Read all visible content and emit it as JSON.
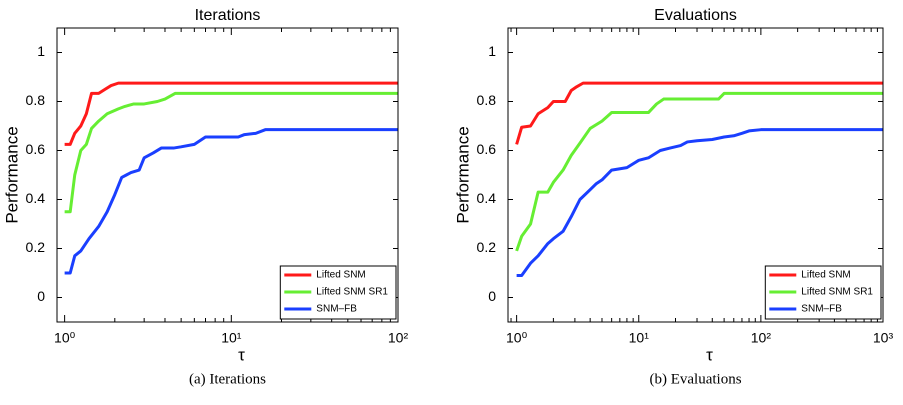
{
  "chart_data": [
    {
      "type": "line",
      "title": "Iterations",
      "caption": "(a) Iterations",
      "xlabel": "τ",
      "ylabel": "Performance",
      "xscale": "log",
      "xlim": [
        0.9,
        100
      ],
      "ylim": [
        -0.1,
        1.1
      ],
      "xticks": [
        {
          "value": 1,
          "label": "10⁰"
        },
        {
          "value": 10,
          "label": "10¹"
        },
        {
          "value": 100,
          "label": "10²"
        }
      ],
      "yticks": [
        0,
        0.2,
        0.4,
        0.6,
        0.8,
        1
      ],
      "grid": false,
      "legend": "lower right",
      "series": [
        {
          "name": "Lifted SNM",
          "color": "#ff1a1a",
          "x": [
            1,
            1.08,
            1.15,
            1.25,
            1.35,
            1.45,
            1.6,
            1.75,
            1.9,
            2.1,
            100
          ],
          "values": [
            0.625,
            0.625,
            0.67,
            0.7,
            0.75,
            0.833,
            0.833,
            0.85,
            0.865,
            0.875,
            0.875
          ]
        },
        {
          "name": "Lifted SNM SR1",
          "color": "#66ee33",
          "x": [
            1,
            1.08,
            1.15,
            1.25,
            1.35,
            1.45,
            1.6,
            1.8,
            2.1,
            2.3,
            2.6,
            3,
            3.6,
            4,
            4.6,
            100
          ],
          "values": [
            0.35,
            0.35,
            0.5,
            0.6,
            0.625,
            0.69,
            0.72,
            0.75,
            0.77,
            0.78,
            0.79,
            0.79,
            0.8,
            0.81,
            0.833,
            0.833
          ]
        },
        {
          "name": "SNM–FB",
          "color": "#1a3fff",
          "x": [
            1,
            1.08,
            1.15,
            1.25,
            1.4,
            1.6,
            1.8,
            2,
            2.2,
            2.5,
            2.8,
            3,
            3.4,
            3.8,
            4.5,
            5,
            6,
            7,
            11,
            12,
            14,
            16,
            100
          ],
          "values": [
            0.1,
            0.1,
            0.17,
            0.19,
            0.24,
            0.29,
            0.35,
            0.42,
            0.49,
            0.51,
            0.52,
            0.57,
            0.59,
            0.61,
            0.61,
            0.615,
            0.625,
            0.655,
            0.655,
            0.665,
            0.67,
            0.685,
            0.685
          ]
        }
      ]
    },
    {
      "type": "line",
      "title": "Evaluations",
      "caption": "(b) Evaluations",
      "xlabel": "τ",
      "ylabel": "Performance",
      "xscale": "log",
      "xlim": [
        0.85,
        1000
      ],
      "ylim": [
        -0.1,
        1.1
      ],
      "xticks": [
        {
          "value": 1,
          "label": "10⁰"
        },
        {
          "value": 10,
          "label": "10¹"
        },
        {
          "value": 100,
          "label": "10²"
        },
        {
          "value": 1000,
          "label": "10³"
        }
      ],
      "yticks": [
        0,
        0.2,
        0.4,
        0.6,
        0.8,
        1
      ],
      "grid": false,
      "legend": "lower right",
      "series": [
        {
          "name": "Lifted SNM",
          "color": "#ff1a1a",
          "x": [
            1,
            1.1,
            1.3,
            1.5,
            1.8,
            2,
            2.5,
            2.8,
            3.1,
            3.5,
            1000
          ],
          "values": [
            0.625,
            0.695,
            0.7,
            0.75,
            0.775,
            0.8,
            0.8,
            0.845,
            0.86,
            0.875,
            0.875
          ]
        },
        {
          "name": "Lifted SNM SR1",
          "color": "#66ee33",
          "x": [
            1,
            1.1,
            1.3,
            1.5,
            1.8,
            2,
            2.4,
            2.8,
            3.3,
            4,
            5,
            6,
            7,
            12,
            14,
            16,
            45,
            50,
            1000
          ],
          "values": [
            0.19,
            0.25,
            0.3,
            0.43,
            0.43,
            0.47,
            0.52,
            0.58,
            0.63,
            0.69,
            0.72,
            0.755,
            0.755,
            0.755,
            0.79,
            0.81,
            0.81,
            0.833,
            0.833
          ]
        },
        {
          "name": "SNM–FB",
          "color": "#1a3fff",
          "x": [
            1,
            1.1,
            1.3,
            1.5,
            1.8,
            2,
            2.4,
            2.8,
            3.3,
            4,
            4.5,
            5,
            6,
            8,
            10,
            12,
            15,
            18,
            22,
            25,
            30,
            40,
            50,
            60,
            70,
            80,
            100,
            1000
          ],
          "values": [
            0.09,
            0.09,
            0.14,
            0.17,
            0.22,
            0.24,
            0.27,
            0.33,
            0.4,
            0.44,
            0.465,
            0.48,
            0.52,
            0.53,
            0.56,
            0.57,
            0.6,
            0.61,
            0.62,
            0.635,
            0.64,
            0.645,
            0.655,
            0.66,
            0.67,
            0.68,
            0.685,
            0.685
          ]
        }
      ]
    }
  ]
}
